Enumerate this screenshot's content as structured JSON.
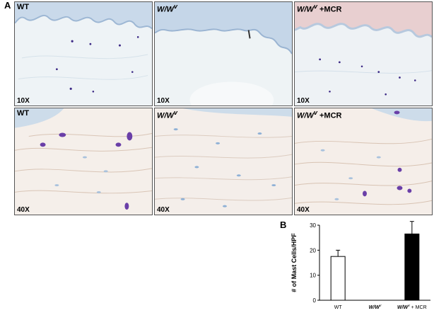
{
  "panel_a_label": "A",
  "panel_b_label": "B",
  "micrographs": [
    {
      "label_main": "WT",
      "label_sup": "",
      "label_suffix": "",
      "magnification": "10X"
    },
    {
      "label_main": "W/W",
      "label_sup": "v",
      "label_suffix": "",
      "magnification": "10X"
    },
    {
      "label_main": "W/W",
      "label_sup": "v",
      "label_suffix": " +MCR",
      "magnification": "10X"
    },
    {
      "label_main": "WT",
      "label_sup": "",
      "label_suffix": "",
      "magnification": "40X"
    },
    {
      "label_main": "W/W",
      "label_sup": "v",
      "label_suffix": "",
      "magnification": "40X"
    },
    {
      "label_main": "W/W",
      "label_sup": "v",
      "label_suffix": " +MCR",
      "magnification": "40X"
    }
  ],
  "chart_data": {
    "type": "bar",
    "categories": [
      "WT",
      "W/W",
      "W/W + MCR"
    ],
    "category_sup": [
      "",
      "v",
      "v"
    ],
    "values": [
      17.5,
      0,
      26.5
    ],
    "errors": [
      2.5,
      0,
      5
    ],
    "bar_colors": [
      "#ffffff",
      "#ffffff",
      "#000000"
    ],
    "ylabel": "# of Mast Cells/HPF",
    "ylim": [
      0,
      30
    ],
    "yticks": [
      "0",
      "10",
      "20",
      "30"
    ],
    "grid": false
  }
}
